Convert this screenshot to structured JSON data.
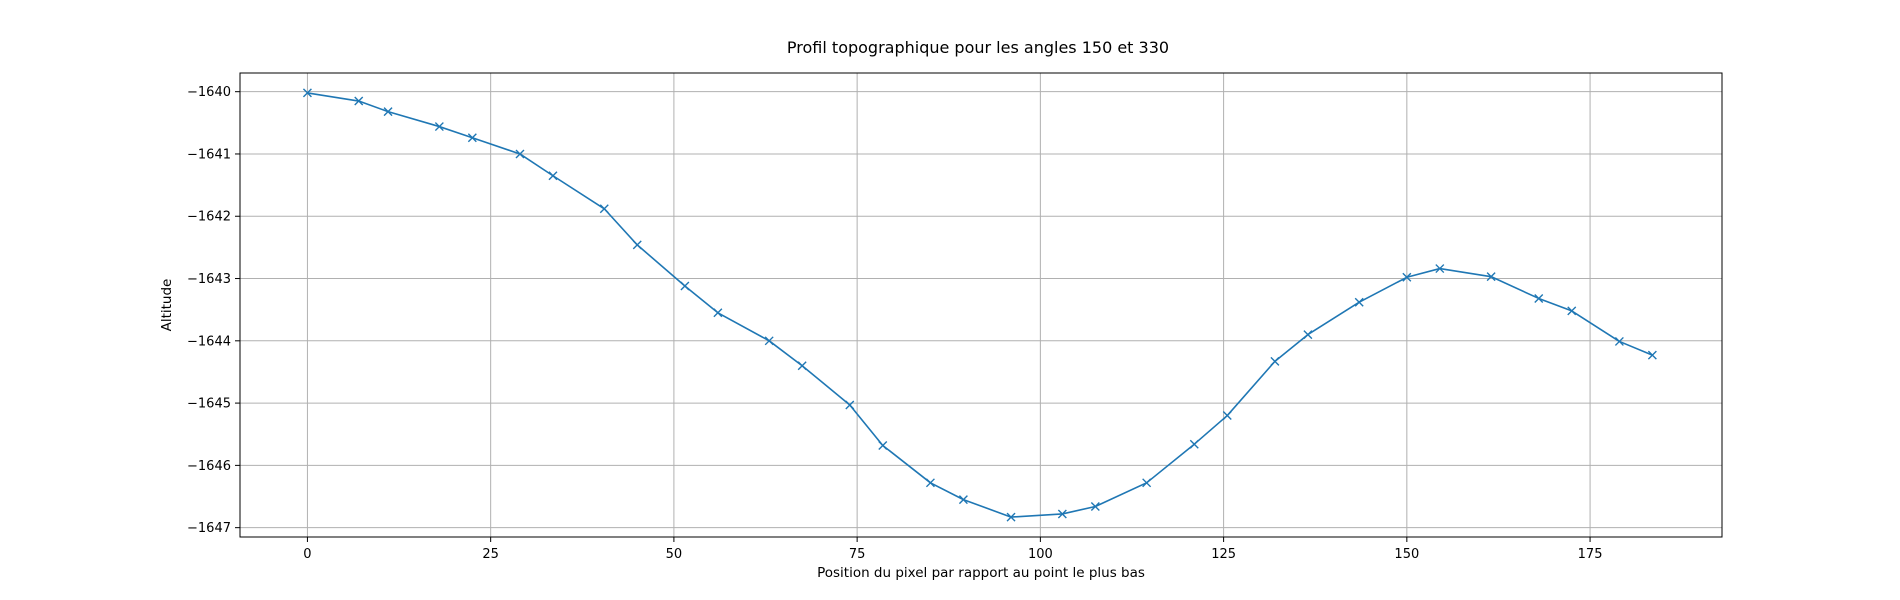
{
  "chart_data": {
    "type": "line",
    "title": "Profil topographique pour les angles 150 et 330",
    "xlabel": "Position du pixel par rapport au point le plus bas",
    "ylabel": "Altitude",
    "xlim": [
      -9.2,
      193
    ],
    "ylim": [
      -1647.15,
      -1639.7
    ],
    "xticks": [
      0,
      25,
      50,
      75,
      100,
      125,
      150,
      175
    ],
    "yticks": [
      -1640,
      -1641,
      -1642,
      -1643,
      -1644,
      -1645,
      -1646,
      -1647
    ],
    "xtick_labels": [
      "0",
      "25",
      "50",
      "75",
      "100",
      "125",
      "150",
      "175"
    ],
    "ytick_labels": [
      "−1640",
      "−1641",
      "−1642",
      "−1643",
      "−1644",
      "−1645",
      "−1646",
      "−1647"
    ],
    "grid": true,
    "marker": "x",
    "color": "#1f77b4",
    "series": [
      {
        "x": [
          0,
          7,
          11,
          18,
          22.5,
          29,
          33.5,
          40.5,
          45,
          51.5,
          56,
          63,
          67.5,
          74,
          78.5,
          85,
          89.5,
          96,
          103,
          107.5,
          114.5,
          121,
          125.5,
          132,
          136.5,
          143.5,
          150,
          154.5,
          161.5,
          168,
          172.5,
          179,
          183.5
        ],
        "y": [
          -1640.02,
          -1640.15,
          -1640.32,
          -1640.56,
          -1640.74,
          -1641.0,
          -1641.35,
          -1641.88,
          -1642.46,
          -1643.12,
          -1643.55,
          -1644.0,
          -1644.4,
          -1645.03,
          -1645.68,
          -1646.28,
          -1646.55,
          -1646.83,
          -1646.78,
          -1646.66,
          -1646.28,
          -1645.66,
          -1645.2,
          -1644.33,
          -1643.9,
          -1643.38,
          -1642.98,
          -1642.84,
          -1642.97,
          -1643.32,
          -1643.52,
          -1644.01,
          -1644.23
        ]
      }
    ]
  }
}
